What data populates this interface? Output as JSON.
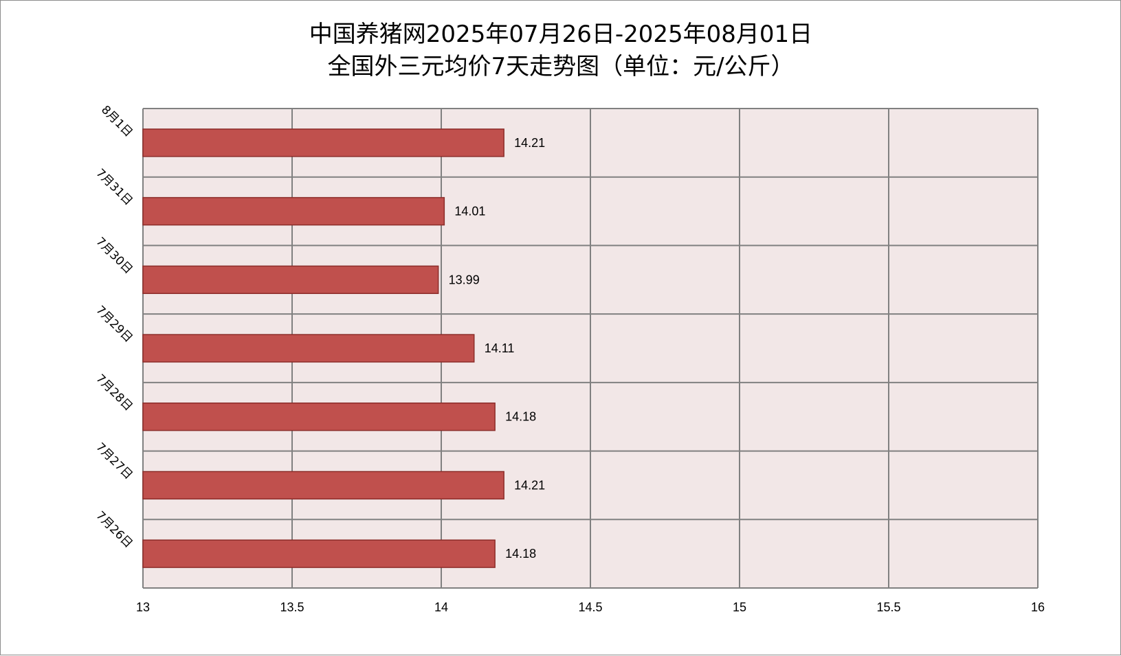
{
  "chart_data": {
    "type": "bar",
    "orientation": "horizontal",
    "title": "中国养猪网2025年07月26日-2025年08月01日",
    "subtitle": "全国外三元均价7天走势图（单位：元/公斤）",
    "categories": [
      "8月1日",
      "7月31日",
      "7月30日",
      "7月29日",
      "7月28日",
      "7月27日",
      "7月26日"
    ],
    "values": [
      14.21,
      14.01,
      13.99,
      14.11,
      14.18,
      14.21,
      14.18
    ],
    "data_labels": [
      "14.21",
      "14.01",
      "13.99",
      "14.11",
      "14.18",
      "14.21",
      "14.18"
    ],
    "xlim": [
      13,
      16
    ],
    "x_ticks": [
      13,
      13.5,
      14,
      14.5,
      15,
      15.5,
      16
    ],
    "x_tick_labels": [
      "13",
      "13.5",
      "14",
      "14.5",
      "15",
      "15.5",
      "16"
    ],
    "grid": true,
    "legend": "none",
    "colors": {
      "bar_fill": "#c0504d",
      "bar_stroke": "#8c2d2a",
      "plot_background": "#f2e7e7",
      "grid": "#808080"
    }
  }
}
